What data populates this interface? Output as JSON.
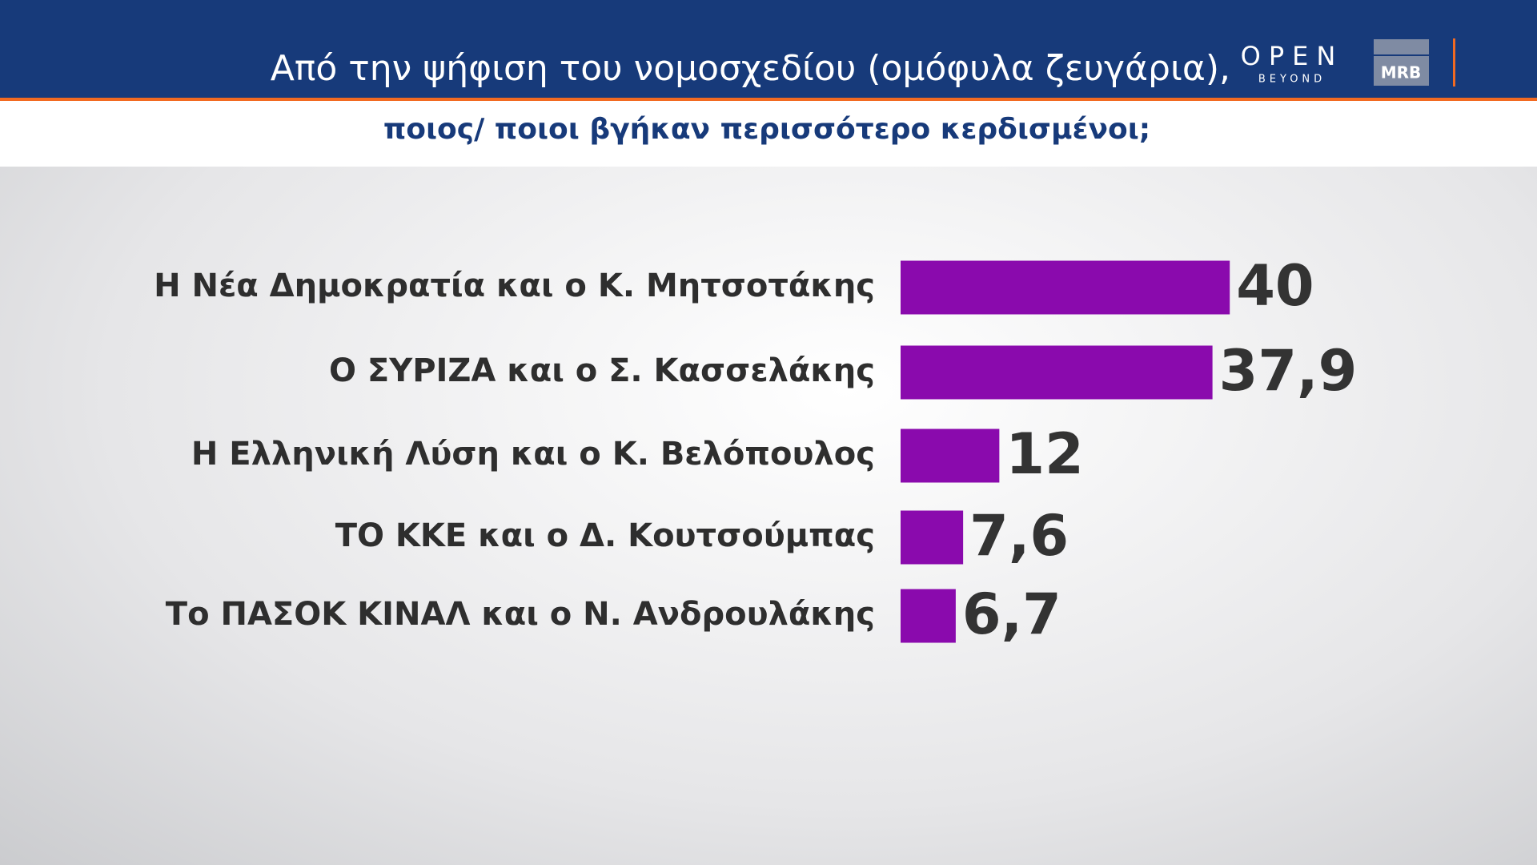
{
  "header": {
    "logo": "OPEN",
    "logo_sub": "BEYOND",
    "brand": "MRB"
  },
  "chart_data": {
    "type": "bar",
    "orientation": "horizontal",
    "title": "Από την ψήφιση του νομοσχεδίου (ομόφυλα ζευγάρια),",
    "subtitle": "ποιος/ ποιοι βγήκαν περισσότερο κερδισμένοι;",
    "categories": [
      "Η Νέα Δημοκρατία και ο Κ. Μητσοτάκης",
      "Ο ΣΥΡΙΖΑ και ο Σ. Κασσελάκης",
      "Η Ελληνική Λύση και ο Κ. Βελόπουλος",
      "ΤΟ ΚΚΕ και ο Δ. Κουτσούμπας",
      "Το ΠΑΣΟΚ ΚΙΝΑΛ και ο Ν. Ανδρουλάκης"
    ],
    "values": [
      40,
      37.9,
      12,
      7.6,
      6.7
    ],
    "value_labels": [
      "40",
      "37,9",
      "12",
      "7,6",
      "6,7"
    ],
    "color": "#8a0aad"
  }
}
